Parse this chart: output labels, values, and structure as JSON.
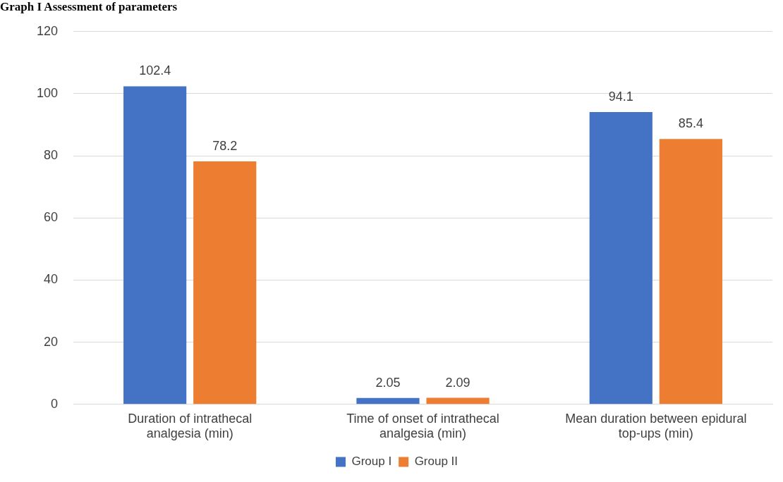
{
  "chart_data": {
    "type": "bar",
    "title": "Graph I Assessment of parameters",
    "categories": [
      "Duration of intrathecal analgesia (min)",
      "Time of onset of intrathecal analgesia (min)",
      "Mean duration between epidural top-ups (min)"
    ],
    "series": [
      {
        "name": "Group I",
        "color": "#4472c4",
        "values": [
          102.4,
          2.05,
          94.1
        ]
      },
      {
        "name": "Group II",
        "color": "#ed7d31",
        "values": [
          78.2,
          2.09,
          85.4
        ]
      }
    ],
    "ylim": [
      0,
      120
    ],
    "yticks": [
      0,
      20,
      40,
      60,
      80,
      100,
      120
    ],
    "grid": "y",
    "legend": "bottom",
    "data_labels": true
  }
}
